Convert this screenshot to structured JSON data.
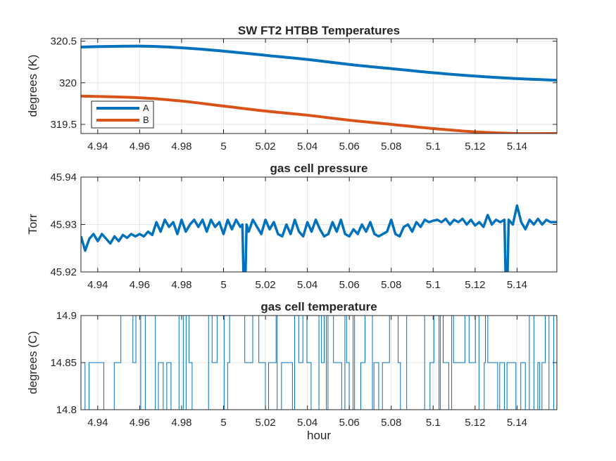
{
  "figure": {
    "xlabel": "hour",
    "colors": {
      "series_A": "#0072BD",
      "series_B": "#D95319",
      "axes": "#262626",
      "grid": "#e6e6e6"
    }
  },
  "chart_data": [
    {
      "type": "line",
      "title": "SW FT2 HTBB Temperatures",
      "xlabel": "",
      "ylabel": "degrees (K)",
      "xlim": [
        4.932,
        5.159
      ],
      "ylim": [
        319.39,
        320.53
      ],
      "xticks": [
        "4.94",
        "4.96",
        "4.98",
        "5",
        "5.02",
        "5.04",
        "5.06",
        "5.08",
        "5.1",
        "5.12",
        "5.14"
      ],
      "yticks": [
        "319.5",
        "320",
        "320.5"
      ],
      "grid": true,
      "legend_position": "bottom-left",
      "series": [
        {
          "name": "A",
          "x": [
            4.932,
            4.96,
            4.98,
            5.0,
            5.02,
            5.04,
            5.06,
            5.08,
            5.1,
            5.12,
            5.14,
            5.159
          ],
          "y": [
            320.43,
            320.44,
            320.42,
            320.38,
            320.33,
            320.28,
            320.22,
            320.17,
            320.12,
            320.08,
            320.05,
            320.03
          ]
        },
        {
          "name": "B",
          "x": [
            4.932,
            4.96,
            4.98,
            5.0,
            5.02,
            5.04,
            5.06,
            5.08,
            5.1,
            5.12,
            5.14,
            5.159
          ],
          "y": [
            319.84,
            319.82,
            319.78,
            319.72,
            319.66,
            319.61,
            319.55,
            319.5,
            319.45,
            319.41,
            319.39,
            319.39
          ]
        }
      ]
    },
    {
      "type": "line",
      "title": "gas cell pressure",
      "xlabel": "",
      "ylabel": "Torr",
      "xlim": [
        4.932,
        5.159
      ],
      "ylim": [
        45.92,
        45.94
      ],
      "xticks": [
        "4.94",
        "4.96",
        "4.98",
        "5",
        "5.02",
        "5.04",
        "5.06",
        "5.08",
        "5.1",
        "5.12",
        "5.14"
      ],
      "yticks": [
        "45.92",
        "45.93",
        "45.94"
      ],
      "grid": true,
      "series": [
        {
          "x": [
            4.932,
            4.934,
            4.936,
            4.938,
            4.94,
            4.942,
            4.944,
            4.946,
            4.948,
            4.95,
            4.952,
            4.954,
            4.956,
            4.958,
            4.96,
            4.962,
            4.964,
            4.966,
            4.968,
            4.97,
            4.972,
            4.974,
            4.976,
            4.978,
            4.98,
            4.982,
            4.984,
            4.986,
            4.988,
            4.99,
            4.992,
            4.994,
            4.996,
            4.998,
            5.0,
            5.002,
            5.004,
            5.006,
            5.008,
            5.009,
            5.0095,
            5.0105,
            5.011,
            5.012,
            5.014,
            5.016,
            5.018,
            5.02,
            5.022,
            5.024,
            5.026,
            5.028,
            5.03,
            5.032,
            5.034,
            5.036,
            5.038,
            5.04,
            5.042,
            5.044,
            5.046,
            5.048,
            5.05,
            5.052,
            5.054,
            5.056,
            5.058,
            5.06,
            5.062,
            5.064,
            5.066,
            5.068,
            5.07,
            5.072,
            5.074,
            5.076,
            5.078,
            5.08,
            5.082,
            5.084,
            5.086,
            5.088,
            5.09,
            5.092,
            5.094,
            5.096,
            5.098,
            5.1,
            5.102,
            5.104,
            5.106,
            5.108,
            5.11,
            5.112,
            5.114,
            5.116,
            5.118,
            5.12,
            5.122,
            5.124,
            5.126,
            5.128,
            5.13,
            5.132,
            5.134,
            5.1345,
            5.1355,
            5.136,
            5.138,
            5.14,
            5.142,
            5.144,
            5.146,
            5.148,
            5.15,
            5.152,
            5.154,
            5.156,
            5.159
          ],
          "y": [
            45.9275,
            45.9245,
            45.927,
            45.928,
            45.9265,
            45.928,
            45.927,
            45.926,
            45.9275,
            45.9265,
            45.9278,
            45.9272,
            45.928,
            45.9275,
            45.928,
            45.9275,
            45.9285,
            45.9278,
            45.9305,
            45.9285,
            45.931,
            45.9295,
            45.9305,
            45.928,
            45.931,
            45.9285,
            45.93,
            45.931,
            45.9295,
            45.931,
            45.9285,
            45.931,
            45.9295,
            45.9305,
            45.928,
            45.931,
            45.929,
            45.931,
            45.9295,
            45.93,
            45.92,
            45.92,
            45.93,
            45.9285,
            45.931,
            45.9295,
            45.928,
            45.931,
            45.929,
            45.9305,
            45.928,
            45.9275,
            45.93,
            45.928,
            45.931,
            45.9285,
            45.9275,
            45.9305,
            45.9285,
            45.931,
            45.929,
            45.9275,
            45.928,
            45.9305,
            45.9285,
            45.931,
            45.928,
            45.9275,
            45.929,
            45.928,
            45.93,
            45.9285,
            45.9305,
            45.928,
            45.9275,
            45.928,
            45.9285,
            45.931,
            45.928,
            45.9275,
            45.9295,
            45.93,
            45.9285,
            45.9305,
            45.9295,
            45.931,
            45.9305,
            45.9308,
            45.931,
            45.9305,
            45.9312,
            45.93,
            45.931,
            45.9305,
            45.9312,
            45.93,
            45.931,
            45.9298,
            45.9305,
            45.9295,
            45.932,
            45.93,
            45.931,
            45.9305,
            45.931,
            45.92,
            45.92,
            45.931,
            45.93,
            45.934,
            45.9305,
            45.929,
            45.931,
            45.93,
            45.9312,
            45.93,
            45.931,
            45.9305,
            45.9305
          ]
        }
      ]
    },
    {
      "type": "line",
      "title": "gas cell temperature",
      "xlabel": "hour",
      "ylabel": "degrees (C)",
      "xlim": [
        4.932,
        5.159
      ],
      "ylim": [
        14.8,
        14.9
      ],
      "xticks": [
        "4.94",
        "4.96",
        "4.98",
        "5",
        "5.02",
        "5.04",
        "5.06",
        "5.08",
        "5.1",
        "5.12",
        "5.14"
      ],
      "yticks": [
        "14.8",
        "14.85",
        "14.9"
      ],
      "grid": true,
      "levels": [
        14.8,
        14.85,
        14.9
      ],
      "series": [
        {
          "note": "signal toggles between 14.8, 14.85 and 14.9 throughout",
          "x": [
            4.932,
            5.159
          ],
          "y": [
            14.85,
            14.85
          ]
        }
      ]
    }
  ]
}
